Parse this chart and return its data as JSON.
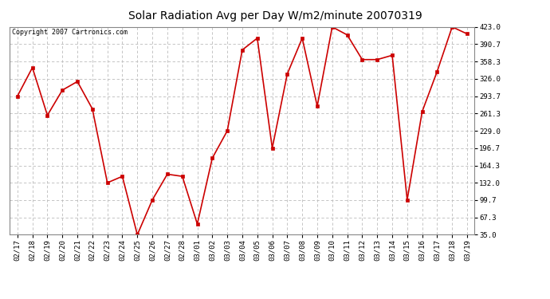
{
  "title": "Solar Radiation Avg per Day W/m2/minute 20070319",
  "copyright": "Copyright 2007 Cartronics.com",
  "dates": [
    "02/17",
    "02/18",
    "02/19",
    "02/20",
    "02/21",
    "02/22",
    "02/23",
    "02/24",
    "02/25",
    "02/26",
    "02/27",
    "02/28",
    "03/01",
    "03/02",
    "03/03",
    "03/04",
    "03/05",
    "03/06",
    "03/07",
    "03/08",
    "03/09",
    "03/10",
    "03/11",
    "03/12",
    "03/13",
    "03/14",
    "03/15",
    "03/16",
    "03/17",
    "03/18",
    "03/19"
  ],
  "values": [
    293.7,
    347.0,
    258.0,
    305.0,
    321.0,
    270.0,
    132.0,
    144.0,
    35.0,
    100.0,
    148.0,
    144.0,
    55.0,
    178.0,
    229.0,
    380.0,
    402.0,
    196.7,
    335.0,
    402.0,
    275.0,
    423.0,
    408.0,
    362.0,
    362.0,
    370.0,
    100.0,
    265.0,
    340.0,
    423.0,
    410.0
  ],
  "line_color": "#cc0000",
  "marker_color": "#cc0000",
  "bg_color": "#ffffff",
  "plot_bg_color": "#ffffff",
  "grid_color": "#bbbbbb",
  "ylim": [
    35.0,
    423.0
  ],
  "yticks": [
    35.0,
    67.3,
    99.7,
    132.0,
    164.3,
    196.7,
    229.0,
    261.3,
    293.7,
    326.0,
    358.3,
    390.7,
    423.0
  ],
  "title_fontsize": 10,
  "tick_fontsize": 6.5,
  "copyright_fontsize": 6
}
